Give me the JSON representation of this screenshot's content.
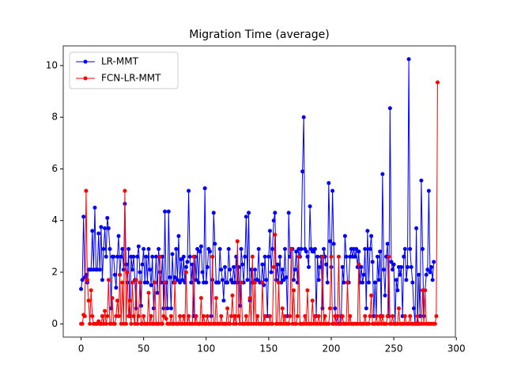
{
  "chart_data": {
    "type": "line",
    "title": "Migration Time (average)",
    "x": [
      0,
      1,
      2,
      3,
      4,
      5,
      6,
      7,
      8,
      9,
      10,
      11,
      12,
      13,
      14,
      15,
      16,
      17,
      18,
      19,
      20,
      21,
      22,
      23,
      24,
      25,
      26,
      27,
      28,
      29,
      30,
      31,
      32,
      33,
      34,
      35,
      36,
      37,
      38,
      39,
      40,
      41,
      42,
      43,
      44,
      45,
      46,
      47,
      48,
      49,
      50,
      51,
      52,
      53,
      54,
      55,
      56,
      57,
      58,
      59,
      60,
      61,
      62,
      63,
      64,
      65,
      66,
      67,
      68,
      69,
      70,
      71,
      72,
      73,
      74,
      75,
      76,
      77,
      78,
      79,
      80,
      81,
      82,
      83,
      84,
      85,
      86,
      87,
      88,
      89,
      90,
      91,
      92,
      93,
      94,
      95,
      96,
      97,
      98,
      99,
      100,
      101,
      102,
      103,
      104,
      105,
      106,
      107,
      108,
      109,
      110,
      111,
      112,
      113,
      114,
      115,
      116,
      117,
      118,
      119,
      120,
      121,
      122,
      123,
      124,
      125,
      126,
      127,
      128,
      129,
      130,
      131,
      132,
      133,
      134,
      135,
      136,
      137,
      138,
      139,
      140,
      141,
      142,
      143,
      144,
      145,
      146,
      147,
      148,
      149,
      150,
      151,
      152,
      153,
      154,
      155,
      156,
      157,
      158,
      159,
      160,
      161,
      162,
      163,
      164,
      165,
      166,
      167,
      168,
      169,
      170,
      171,
      172,
      173,
      174,
      175,
      176,
      177,
      178,
      179,
      180,
      181,
      182,
      183,
      184,
      185,
      186,
      187,
      188,
      189,
      190,
      191,
      192,
      193,
      194,
      195,
      196,
      197,
      198,
      199,
      200,
      201,
      202,
      203,
      204,
      205,
      206,
      207,
      208,
      209,
      210,
      211,
      212,
      213,
      214,
      215,
      216,
      217,
      218,
      219,
      220,
      221,
      222,
      223,
      224,
      225,
      226,
      227,
      228,
      229,
      230,
      231,
      232,
      233,
      234,
      235,
      236,
      237,
      238,
      239,
      240,
      241,
      242,
      243,
      244,
      245,
      246,
      247,
      248,
      249,
      250,
      251,
      252,
      253,
      254,
      255,
      256,
      257,
      258,
      259,
      260,
      261,
      262,
      263,
      264,
      265,
      266,
      267,
      268,
      269,
      270,
      271,
      272,
      273,
      274,
      275,
      276,
      277,
      278,
      279,
      280,
      281,
      282,
      283,
      284,
      285
    ],
    "series": [
      {
        "name": "LR-MMT",
        "color": "#0000ff",
        "values": [
          1.35,
          1.7,
          4.15,
          1.8,
          1.9,
          1.6,
          2.1,
          2.1,
          2.1,
          3.6,
          2.1,
          4.5,
          2.1,
          2.1,
          3.5,
          2.1,
          3.75,
          1.7,
          2.9,
          3.7,
          2.6,
          4.1,
          3.7,
          2.9,
          0.6,
          2.6,
          2.6,
          1.9,
          1.4,
          2.6,
          3.4,
          1.9,
          2.6,
          2.9,
          2.1,
          4.65,
          2.3,
          1.6,
          2.9,
          0.3,
          2.6,
          2.1,
          2.6,
          1.7,
          0.6,
          2.6,
          3.0,
          2.0,
          0.7,
          2.3,
          2.9,
          1.6,
          2.6,
          1.6,
          2.9,
          2.1,
          1.5,
          2.6,
          0.6,
          1.6,
          2.6,
          1.2,
          2.9,
          2.0,
          1.6,
          2.6,
          0.6,
          4.35,
          1.6,
          0.6,
          4.35,
          1.8,
          0.6,
          2.7,
          1.6,
          1.8,
          2.9,
          1.7,
          3.4,
          1.6,
          2.5,
          1.7,
          2.6,
          1.6,
          2.2,
          2.4,
          5.15,
          2.6,
          1.6,
          2.3,
          0.3,
          2.6,
          1.7,
          2.9,
          1.6,
          2.8,
          3.0,
          2.0,
          1.6,
          5.25,
          1.6,
          2.2,
          2.9,
          2.8,
          0.3,
          1.7,
          4.3,
          3.1,
          1.6,
          1.6,
          1.6,
          2.9,
          2.1,
          1.7,
          0.9,
          2.2,
          1.6,
          1.6,
          2.9,
          2.1,
          1.7,
          1.6,
          2.2,
          1.6,
          2.6,
          1.6,
          2.2,
          0.7,
          2.9,
          2.3,
          1.6,
          2.6,
          4.15,
          1.7,
          4.3,
          0.9,
          2.1,
          1.6,
          1.6,
          2.1,
          1.7,
          1.7,
          2.9,
          1.6,
          1.6,
          2.3,
          1.5,
          2.6,
          1.7,
          0.3,
          2.6,
          3.6,
          2.0,
          2.9,
          4.0,
          4.3,
          1.7,
          2.3,
          1.6,
          2.6,
          1.6,
          2.1,
          1.7,
          2.9,
          1.8,
          0.3,
          4.3,
          2.6,
          2.9,
          2.9,
          1.7,
          2.1,
          2.8,
          1.6,
          2.9,
          2.6,
          2.9,
          5.9,
          8.0,
          2.9,
          2.8,
          2.6,
          2.2,
          4.55,
          2.9,
          2.8,
          2.8,
          2.9,
          0.3,
          2.6,
          1.7,
          2.2,
          2.6,
          0.6,
          2.9,
          2.6,
          2.3,
          1.6,
          5.45,
          3.2,
          2.2,
          5.15,
          3.1,
          0.6,
          0.0,
          0.3,
          0.0,
          0.0,
          0.3,
          2.2,
          1.6,
          3.4,
          2.6,
          1.6,
          1.6,
          2.6,
          2.9,
          2.6,
          2.9,
          2.6,
          2.9,
          2.2,
          2.8,
          1.6,
          2.2,
          1.6,
          1.9,
          2.9,
          0.6,
          3.6,
          1.6,
          2.9,
          3.4,
          2.4,
          0.3,
          1.6,
          0.3,
          2.6,
          1.7,
          2.8,
          0.3,
          5.8,
          2.1,
          1.1,
          2.6,
          3.1,
          0.3,
          8.35,
          2.4,
          2.1,
          2.3,
          0.0,
          1.7,
          1.3,
          2.2,
          1.9,
          2.2,
          0.3,
          2.6,
          2.9,
          1.7,
          2.2,
          10.25,
          2.9,
          2.2,
          1.6,
          0.6,
          0.0,
          3.7,
          0.0,
          1.9,
          0.3,
          5.55,
          2.9,
          0.3,
          1.3,
          1.9,
          2.1,
          5.15,
          2.0,
          2.2,
          1.7,
          2.4,
          null,
          null,
          null
        ]
      },
      {
        "name": "FCN-LR-MMT",
        "color": "#ff0000",
        "values": [
          0,
          0,
          0.35,
          0.3,
          5.15,
          1.7,
          0.9,
          0,
          1.3,
          0.3,
          0,
          0,
          0,
          0,
          0.1,
          0,
          0,
          0.3,
          0,
          0.5,
          0,
          0.3,
          1.7,
          0,
          0,
          1.0,
          0,
          0,
          0.3,
          0.9,
          0.3,
          1.9,
          0,
          1.6,
          0,
          5.15,
          0,
          2.0,
          0.3,
          0.9,
          0,
          1.6,
          0.3,
          0,
          1.7,
          0,
          0.3,
          1.6,
          0,
          0,
          0.3,
          0,
          0,
          0,
          1.2,
          0,
          0.3,
          0,
          0,
          1.6,
          0,
          0,
          0,
          2.6,
          0,
          0,
          0.3,
          1.6,
          0.2,
          0,
          0,
          0,
          0.3,
          0,
          0,
          1.6,
          0,
          0,
          0,
          0.3,
          0,
          0,
          0.3,
          0,
          2.0,
          0,
          0.3,
          0,
          0,
          0,
          2.6,
          0,
          0.3,
          0,
          0,
          0,
          1.0,
          0,
          0.3,
          0,
          0,
          0.3,
          0,
          0,
          0,
          2.6,
          0,
          0,
          1.0,
          0,
          0,
          0,
          0.3,
          0,
          0,
          0,
          0,
          0.6,
          0,
          0,
          0.3,
          1.1,
          0,
          0.3,
          0,
          3.2,
          0.3,
          0,
          1.6,
          0,
          0,
          0,
          0.3,
          0,
          0,
          1.0,
          0,
          2.6,
          0,
          1.6,
          0,
          0.3,
          0,
          0,
          0,
          1.6,
          0,
          0.3,
          0,
          0,
          0,
          0.3,
          0,
          0,
          2.2,
          3.45,
          0,
          0,
          1.6,
          0,
          0,
          0.6,
          0,
          0.3,
          0,
          0,
          0,
          0.3,
          2.9,
          0,
          1.3,
          0,
          0,
          0.3,
          2.6,
          0,
          0,
          0,
          0,
          0.3,
          0,
          1.3,
          0,
          0,
          0,
          0.9,
          0,
          0.3,
          0,
          0,
          0.3,
          0,
          0,
          2.6,
          0,
          0.3,
          0,
          0,
          0,
          0.6,
          2.6,
          0,
          0,
          0.3,
          0,
          0.3,
          2.6,
          0,
          0,
          0.3,
          0,
          0,
          0,
          1.6,
          0,
          0.3,
          0,
          0,
          0,
          0,
          0,
          0,
          2.3,
          0,
          0,
          0,
          0,
          0.3,
          0,
          0,
          0,
          0.3,
          1.1,
          0,
          0,
          0,
          0.3,
          0,
          0,
          0.3,
          0,
          0.3,
          0,
          0,
          0,
          0.3,
          2.6,
          0,
          0,
          0.3,
          0,
          0,
          0,
          0,
          0.6,
          0,
          0,
          0,
          0,
          0.3,
          0,
          0,
          0,
          0.3,
          0,
          0,
          0,
          0,
          0,
          0.3,
          0,
          0,
          0,
          1.3,
          0,
          1.3,
          0,
          0,
          0,
          0,
          0,
          0,
          0,
          0,
          0.3,
          9.35
        ]
      }
    ],
    "xlim": [
      -14.25,
      299.25
    ],
    "xticks": [
      0,
      50,
      100,
      150,
      200,
      250,
      300
    ],
    "ylim": [
      -0.5125,
      10.7625
    ],
    "yticks": [
      0,
      2,
      4,
      6,
      8,
      10
    ],
    "legend": "upper left"
  }
}
